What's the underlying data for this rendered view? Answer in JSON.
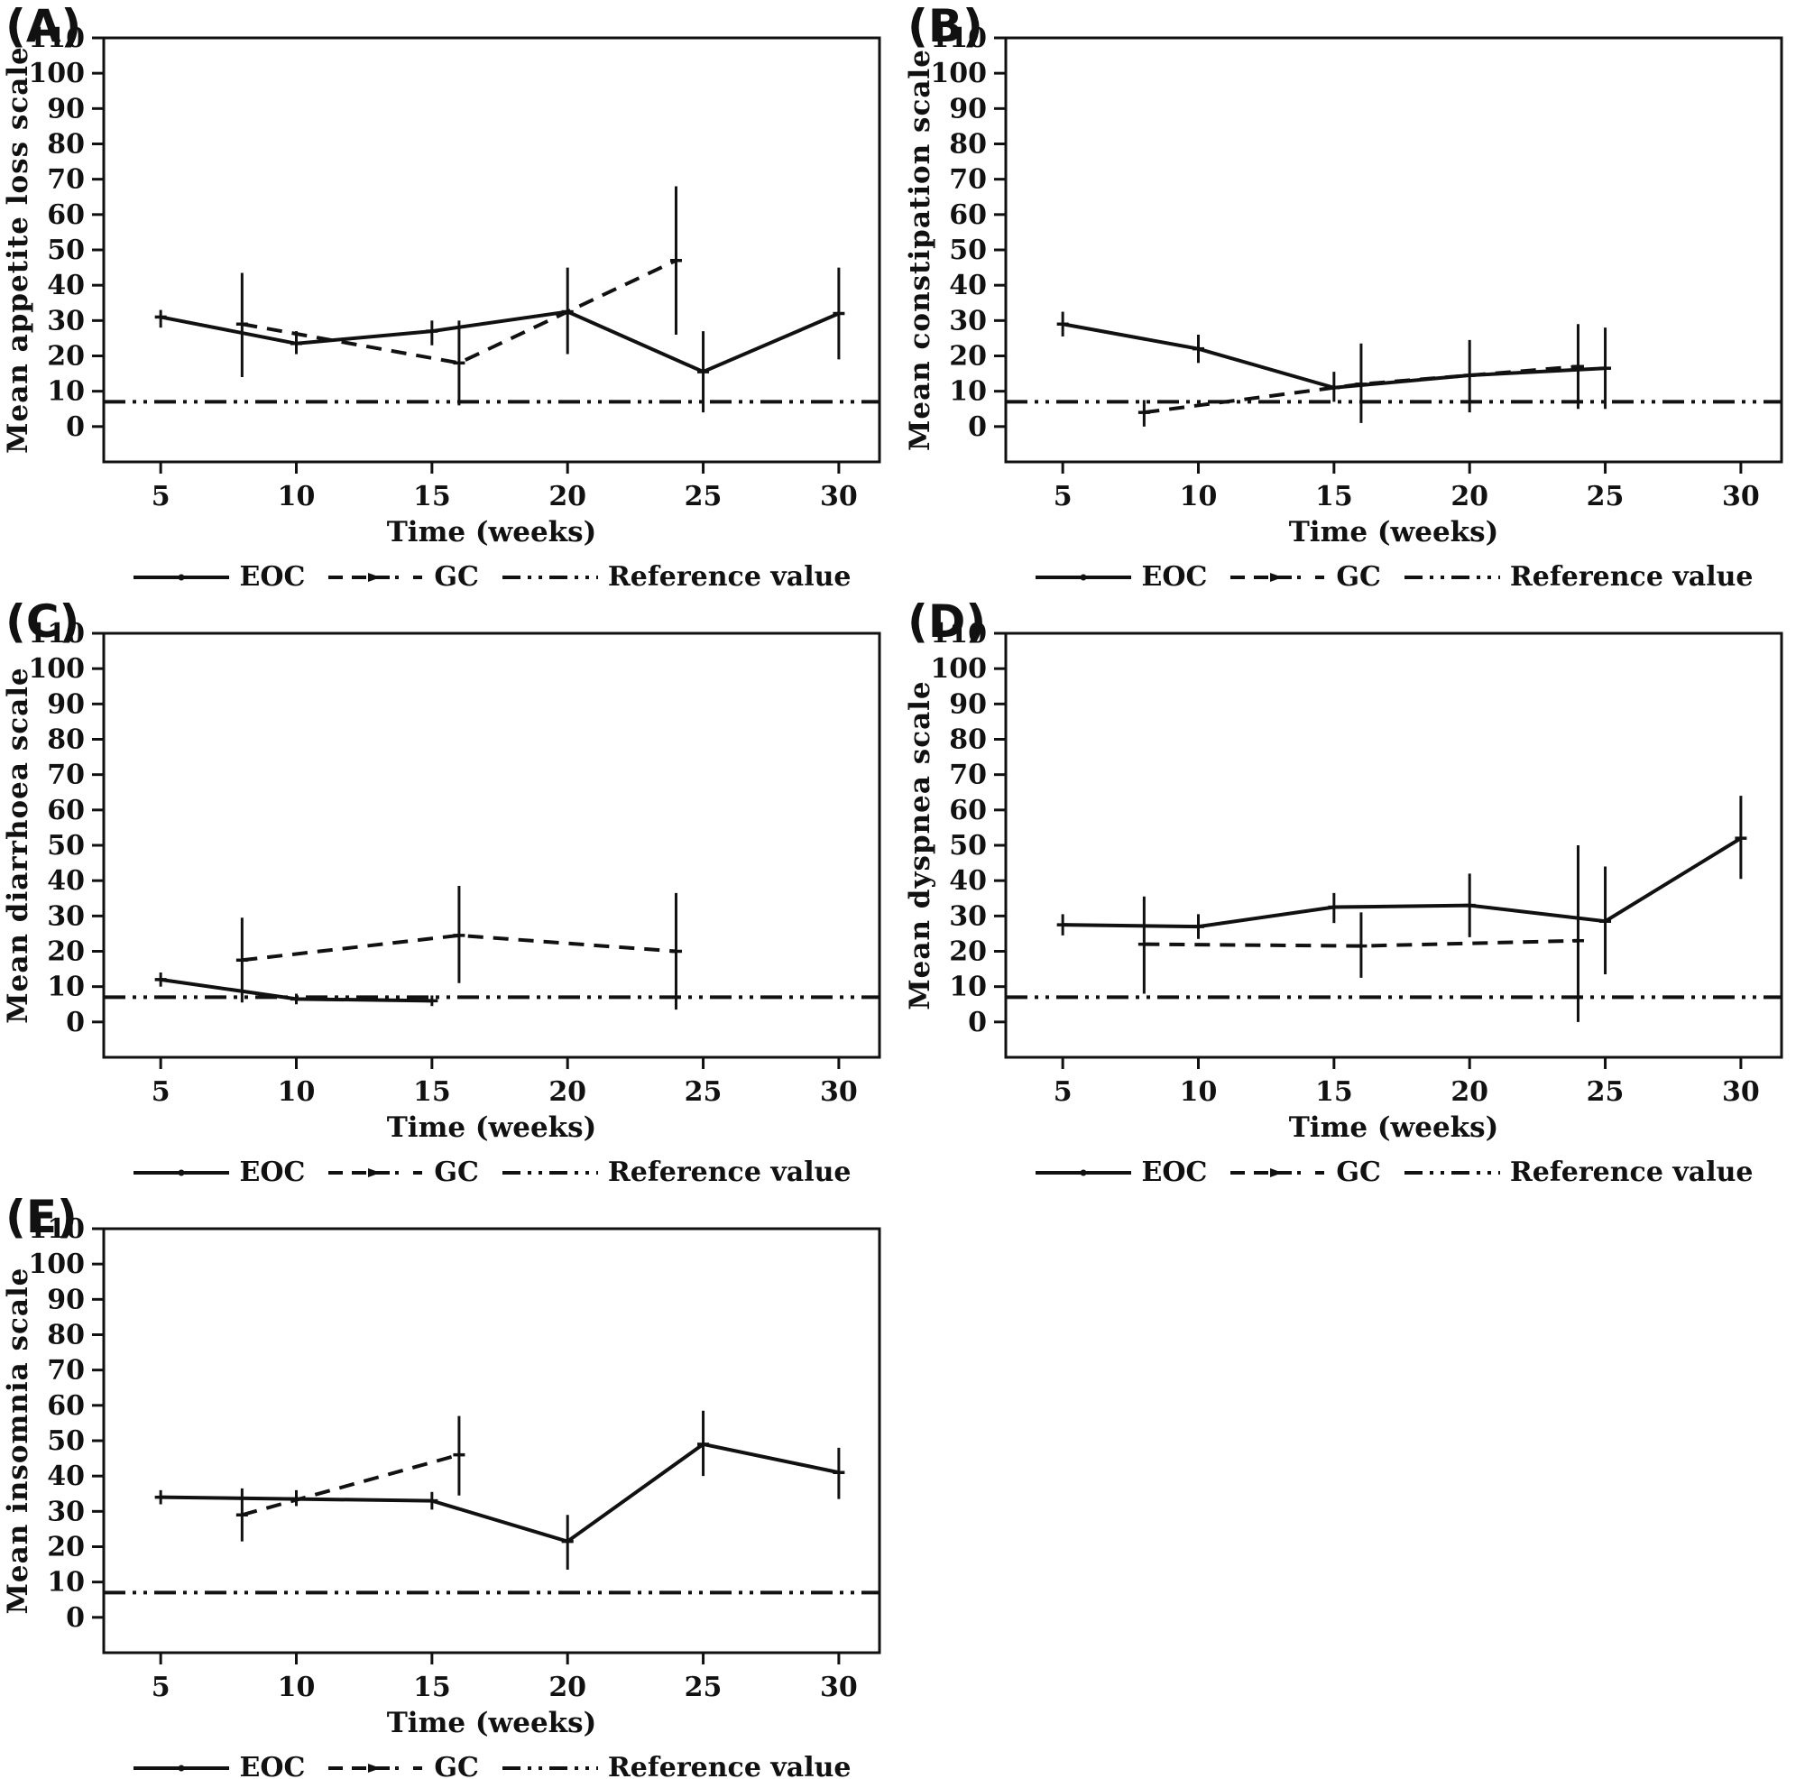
{
  "figure": {
    "xlabel": "Time (weeks)",
    "line_color": "#111111",
    "background": "#ffffff"
  },
  "legend": {
    "eoc": "EOC",
    "gc": "GC",
    "reference": "Reference value"
  },
  "axes": {
    "x_ticks": [
      5,
      10,
      15,
      20,
      25,
      30
    ],
    "y_ticks": [
      0,
      10,
      20,
      30,
      40,
      50,
      60,
      70,
      80,
      90,
      100,
      110
    ],
    "xlim": [
      2.9,
      31.5
    ],
    "ylim": [
      -10,
      110
    ],
    "grid": false,
    "legend_position": "bottom-center"
  },
  "chart_data": [
    {
      "type": "line",
      "tag": "(A)",
      "ylabel": "Mean appetite loss scale",
      "xlabel": "Time (weeks)",
      "reference_value": 7,
      "series": [
        {
          "name": "EOC",
          "style": "solid",
          "x": [
            5,
            10,
            15,
            20,
            25,
            30
          ],
          "y": [
            31,
            23.5,
            27,
            32.5,
            15.5,
            32
          ],
          "ci_low": [
            28,
            20.5,
            23,
            20.5,
            4,
            19
          ],
          "ci_high": [
            33,
            27,
            30,
            45,
            27,
            45
          ]
        },
        {
          "name": "GC",
          "style": "dashed",
          "x": [
            8,
            16,
            24
          ],
          "y": [
            29,
            18,
            47
          ],
          "ci_low": [
            14,
            6,
            26
          ],
          "ci_high": [
            43.5,
            30,
            68
          ]
        }
      ]
    },
    {
      "type": "line",
      "tag": "(B)",
      "ylabel": "Mean constipation scale",
      "xlabel": "Time (weeks)",
      "reference_value": 7,
      "series": [
        {
          "name": "EOC",
          "style": "solid",
          "x": [
            5,
            10,
            15,
            20,
            25
          ],
          "y": [
            29,
            22,
            11,
            14.5,
            16.5
          ],
          "ci_low": [
            25.5,
            18,
            7,
            4,
            5
          ],
          "ci_high": [
            32.5,
            26,
            15.5,
            24.5,
            28
          ]
        },
        {
          "name": "GC",
          "style": "dashed",
          "x": [
            8,
            16,
            24
          ],
          "y": [
            4,
            12,
            17
          ],
          "ci_low": [
            0,
            1,
            5
          ],
          "ci_high": [
            7.5,
            23.5,
            29
          ]
        }
      ]
    },
    {
      "type": "line",
      "tag": "(C)",
      "ylabel": "Mean diarrhoea scale",
      "xlabel": "Time (weeks)",
      "reference_value": 7,
      "series": [
        {
          "name": "EOC",
          "style": "solid",
          "x": [
            5,
            10,
            15
          ],
          "y": [
            12,
            6.5,
            6
          ],
          "ci_low": [
            10,
            5,
            4.5
          ],
          "ci_high": [
            14,
            8,
            7.5
          ]
        },
        {
          "name": "GC",
          "style": "dashed",
          "x": [
            8,
            16,
            24
          ],
          "y": [
            17.5,
            24.5,
            20
          ],
          "ci_low": [
            5.5,
            11,
            3.5
          ],
          "ci_high": [
            29.5,
            38.5,
            36.5
          ]
        }
      ]
    },
    {
      "type": "line",
      "tag": "(D)",
      "ylabel": "Mean dyspnea scale",
      "xlabel": "Time (weeks)",
      "reference_value": 7,
      "series": [
        {
          "name": "EOC",
          "style": "solid",
          "x": [
            5,
            10,
            15,
            20,
            25,
            30
          ],
          "y": [
            27.5,
            27,
            32.5,
            33,
            28.5,
            52
          ],
          "ci_low": [
            24.5,
            23.5,
            28,
            24,
            13.5,
            40.5
          ],
          "ci_high": [
            30.5,
            30.5,
            36.5,
            42,
            44,
            64
          ]
        },
        {
          "name": "GC",
          "style": "dashed",
          "x": [
            8,
            16,
            24
          ],
          "y": [
            22,
            21.5,
            23
          ],
          "ci_low": [
            8,
            12.5,
            0
          ],
          "ci_high": [
            35.5,
            31,
            50
          ]
        }
      ]
    },
    {
      "type": "line",
      "tag": "(E)",
      "ylabel": "Mean insomnia scale",
      "xlabel": "Time (weeks)",
      "reference_value": 7,
      "series": [
        {
          "name": "EOC",
          "style": "solid",
          "x": [
            5,
            10,
            15,
            20,
            25,
            30
          ],
          "y": [
            34,
            33.5,
            33,
            21.5,
            49,
            41
          ],
          "ci_low": [
            32,
            31.5,
            30.5,
            13.5,
            40,
            33.5
          ],
          "ci_high": [
            36,
            36,
            35.5,
            29,
            58.5,
            48
          ]
        },
        {
          "name": "GC",
          "style": "dashed",
          "x": [
            8,
            16
          ],
          "y": [
            29,
            46
          ],
          "ci_low": [
            21.5,
            34.5
          ],
          "ci_high": [
            36.5,
            57
          ]
        }
      ]
    }
  ]
}
